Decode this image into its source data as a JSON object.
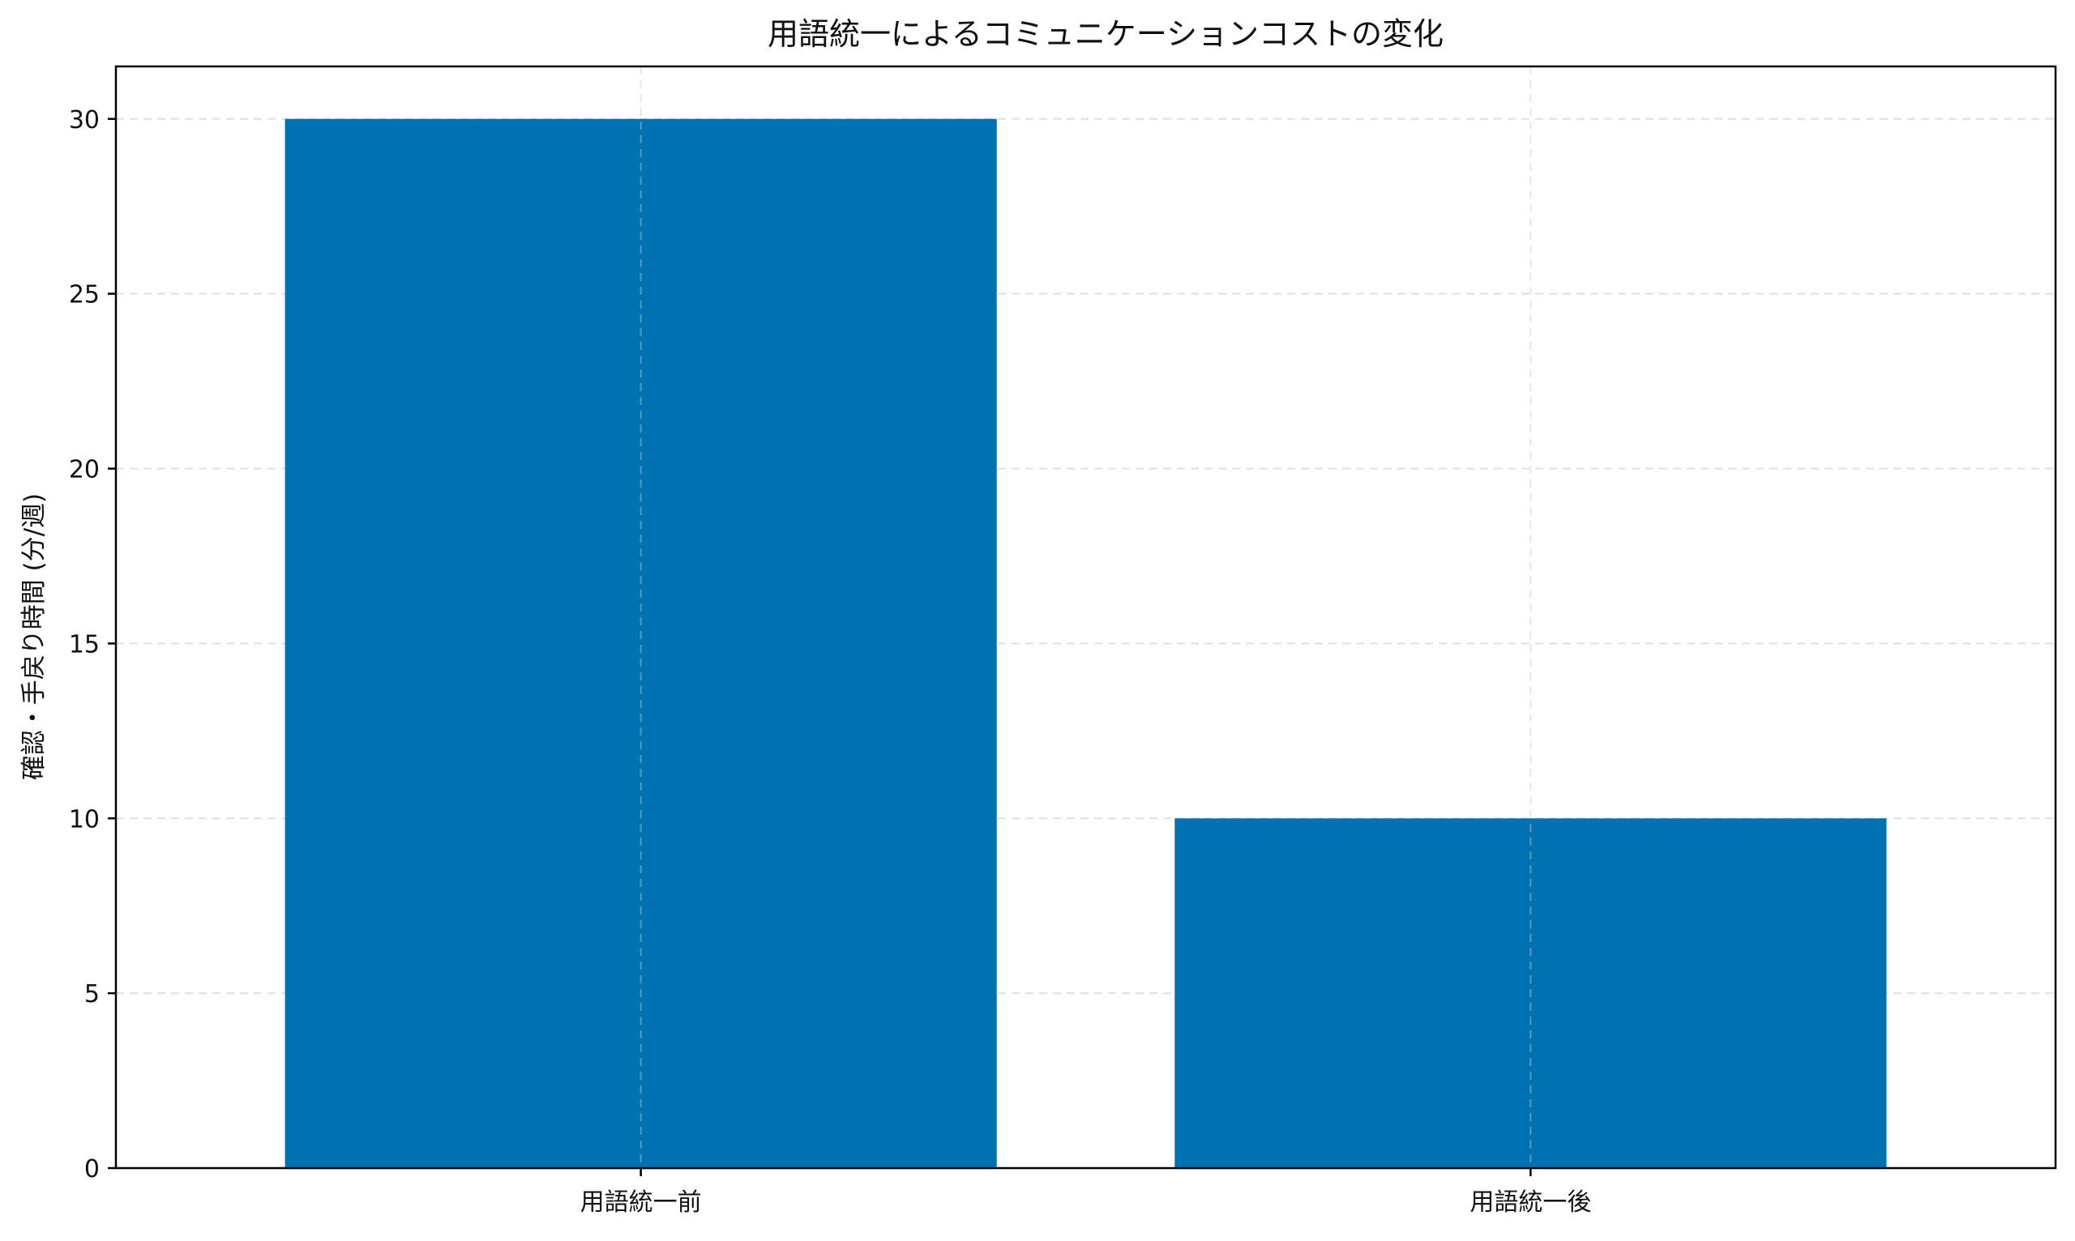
{
  "chart_data": {
    "type": "bar",
    "title": "用語統一によるコミュニケーションコストの変化",
    "xlabel": "",
    "ylabel": "確認・手戻り時間 (分/週)",
    "categories": [
      "用語統一前",
      "用語統一後"
    ],
    "values": [
      30,
      10
    ],
    "ylim": [
      0,
      31.5
    ],
    "yticks": [
      0,
      5,
      10,
      15,
      20,
      25,
      30
    ],
    "grid": true,
    "legend": "none",
    "colors": {
      "bar": "#0072b2",
      "grid": "#e0e0e0",
      "axis": "#000000"
    }
  }
}
